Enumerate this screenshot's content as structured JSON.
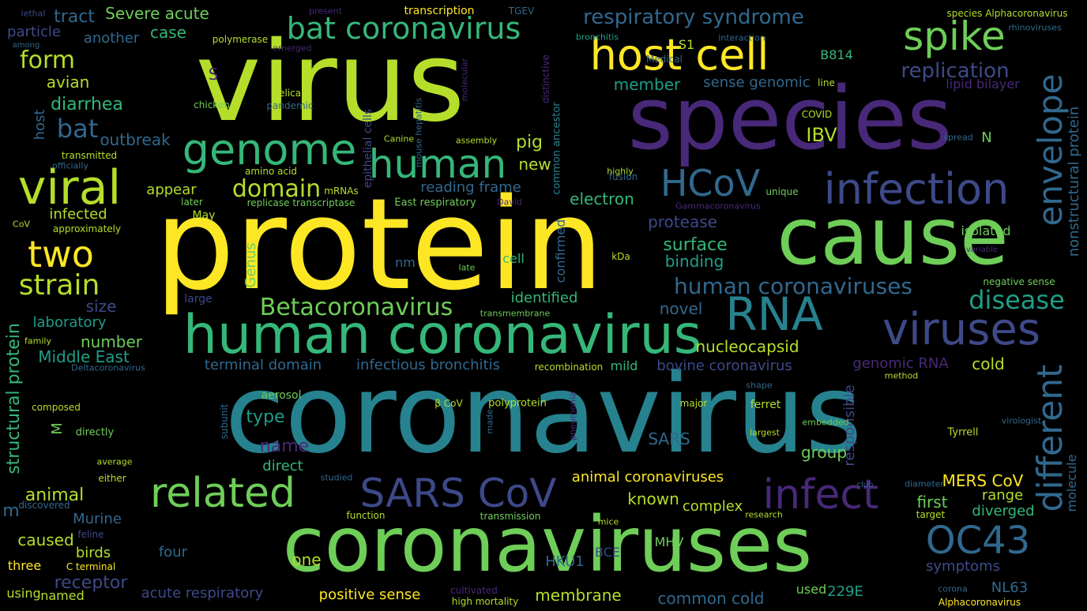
{
  "title": "",
  "palette": {
    "yellow": "#fde725",
    "lime": "#b5de2b",
    "green": "#6ece58",
    "seagreen": "#35b779",
    "teal": "#1f9e89",
    "tealblue": "#26828e",
    "blue": "#31688e",
    "indigo": "#3e4989",
    "purple": "#482878",
    "deep": "#440154"
  },
  "words": [
    {
      "text": "coronavirus",
      "color": "#26828e"
    },
    {
      "text": "virus",
      "color": "#b5de2b"
    },
    {
      "text": "protein",
      "color": "#fde725"
    },
    {
      "text": "species",
      "color": "#482878"
    },
    {
      "text": "coronaviruses",
      "color": "#6ece58"
    },
    {
      "text": "cause",
      "color": "#6ece58"
    },
    {
      "text": "human coronavirus",
      "color": "#35b779"
    },
    {
      "text": "host cell",
      "color": "#fde725"
    },
    {
      "text": "genome",
      "color": "#35b779"
    },
    {
      "text": "human",
      "color": "#35b779"
    },
    {
      "text": "viral",
      "color": "#b5de2b"
    },
    {
      "text": "spike",
      "color": "#6ece58"
    },
    {
      "text": "envelope",
      "color": "#31688e"
    },
    {
      "text": "infection",
      "color": "#3e4989"
    },
    {
      "text": "different",
      "color": "#31688e"
    },
    {
      "text": "RNA",
      "color": "#26828e"
    },
    {
      "text": "viruses",
      "color": "#3e4989"
    },
    {
      "text": "bat coronavirus",
      "color": "#35b779"
    },
    {
      "text": "related",
      "color": "#6ece58"
    },
    {
      "text": "SARS CoV",
      "color": "#3e4989"
    },
    {
      "text": "infect",
      "color": "#482878"
    },
    {
      "text": "OC43",
      "color": "#31688e"
    },
    {
      "text": "two",
      "color": "#fde725"
    },
    {
      "text": "strain",
      "color": "#b5de2b"
    },
    {
      "text": "HCoV",
      "color": "#31688e"
    },
    {
      "text": "Betacoronavirus",
      "color": "#6ece58"
    },
    {
      "text": "respiratory syndrome",
      "color": "#31688e"
    },
    {
      "text": "domain",
      "color": "#b5de2b"
    },
    {
      "text": "form",
      "color": "#b5de2b"
    },
    {
      "text": "bat",
      "color": "#31688e"
    },
    {
      "text": "human coronaviruses",
      "color": "#31688e"
    },
    {
      "text": "disease",
      "color": "#1f9e89"
    },
    {
      "text": "replication",
      "color": "#3e4989"
    },
    {
      "text": "nonstructural protein",
      "color": "#31688e"
    },
    {
      "text": "structural protein",
      "color": "#35b779"
    },
    {
      "text": "Severe acute",
      "color": "#6ece58"
    },
    {
      "text": "tract",
      "color": "#31688e"
    },
    {
      "text": "particle",
      "color": "#3e4989"
    },
    {
      "text": "another",
      "color": "#31688e"
    },
    {
      "text": "case",
      "color": "#35b779"
    },
    {
      "text": "avian",
      "color": "#b5de2b"
    },
    {
      "text": "diarrhea",
      "color": "#35b779"
    },
    {
      "text": "host",
      "color": "#31688e"
    },
    {
      "text": "outbreak",
      "color": "#31688e"
    },
    {
      "text": "member",
      "color": "#1f9e89"
    },
    {
      "text": "sense genomic",
      "color": "#31688e"
    },
    {
      "text": "lipid bilayer",
      "color": "#482878"
    },
    {
      "text": "IBV",
      "color": "#b5de2b"
    },
    {
      "text": "N",
      "color": "#6ece58"
    },
    {
      "text": "pig",
      "color": "#b5de2b"
    },
    {
      "text": "new",
      "color": "#b5de2b"
    },
    {
      "text": "electron",
      "color": "#35b779"
    },
    {
      "text": "reading frame",
      "color": "#31688e"
    },
    {
      "text": "appear",
      "color": "#b5de2b"
    },
    {
      "text": "infected",
      "color": "#b5de2b"
    },
    {
      "text": "protease",
      "color": "#3e4989"
    },
    {
      "text": "surface",
      "color": "#35b779"
    },
    {
      "text": "binding",
      "color": "#1f9e89"
    },
    {
      "text": "isolated",
      "color": "#6ece58"
    },
    {
      "text": "size",
      "color": "#3e4989"
    },
    {
      "text": "identified",
      "color": "#35b779"
    },
    {
      "text": "novel",
      "color": "#31688e"
    },
    {
      "text": "laboratory",
      "color": "#1f9e89"
    },
    {
      "text": "number",
      "color": "#6ece58"
    },
    {
      "text": "Middle East",
      "color": "#1f9e89"
    },
    {
      "text": "terminal domain",
      "color": "#31688e"
    },
    {
      "text": "infectious bronchitis",
      "color": "#31688e"
    },
    {
      "text": "nucleocapsid",
      "color": "#b5de2b"
    },
    {
      "text": "bovine coronavirus",
      "color": "#3e4989"
    },
    {
      "text": "mild",
      "color": "#35b779"
    },
    {
      "text": "genomic RNA",
      "color": "#482878"
    },
    {
      "text": "cold",
      "color": "#b5de2b"
    },
    {
      "text": "type",
      "color": "#1f9e89"
    },
    {
      "text": "name",
      "color": "#482878"
    },
    {
      "text": "direct",
      "color": "#35b779"
    },
    {
      "text": "SARS",
      "color": "#31688e"
    },
    {
      "text": "group",
      "color": "#6ece58"
    },
    {
      "text": "responsible",
      "color": "#3e4989"
    },
    {
      "text": "MERS CoV",
      "color": "#fde725"
    },
    {
      "text": "first",
      "color": "#6ece58"
    },
    {
      "text": "range",
      "color": "#b5de2b"
    },
    {
      "text": "diverged",
      "color": "#35b779"
    },
    {
      "text": "molecule",
      "color": "#31688e"
    },
    {
      "text": "animal",
      "color": "#b5de2b"
    },
    {
      "text": "known",
      "color": "#b5de2b"
    },
    {
      "text": "complex",
      "color": "#b5de2b"
    },
    {
      "text": "animal coronaviruses",
      "color": "#fde725"
    },
    {
      "text": "Murine",
      "color": "#31688e"
    },
    {
      "text": "caused",
      "color": "#b5de2b"
    },
    {
      "text": "birds",
      "color": "#b5de2b"
    },
    {
      "text": "four",
      "color": "#31688e"
    },
    {
      "text": "one",
      "color": "#b5de2b"
    },
    {
      "text": "HKU1",
      "color": "#31688e"
    },
    {
      "text": "BCE",
      "color": "#3e4989"
    },
    {
      "text": "MHV",
      "color": "#6ece58"
    },
    {
      "text": "symptoms",
      "color": "#3e4989"
    },
    {
      "text": "three",
      "color": "#fde725"
    },
    {
      "text": "receptor",
      "color": "#3e4989"
    },
    {
      "text": "acute respiratory",
      "color": "#3e4989"
    },
    {
      "text": "positive sense",
      "color": "#fde725"
    },
    {
      "text": "membrane",
      "color": "#b5de2b"
    },
    {
      "text": "common cold",
      "color": "#31688e"
    },
    {
      "text": "used",
      "color": "#6ece58"
    },
    {
      "text": "229E",
      "color": "#1f9e89"
    },
    {
      "text": "NL63",
      "color": "#31688e"
    },
    {
      "text": "using",
      "color": "#b5de2b"
    },
    {
      "text": "named",
      "color": "#b5de2b"
    },
    {
      "text": "high mortality",
      "color": "#b5de2b"
    },
    {
      "text": "cultivated",
      "color": "#482878"
    },
    {
      "text": "Alphacoronavirus",
      "color": "#fde725"
    },
    {
      "text": "corona",
      "color": "#31688e"
    },
    {
      "text": "Genus",
      "color": "#6ece58"
    },
    {
      "text": "nm",
      "color": "#31688e"
    },
    {
      "text": "cell",
      "color": "#35b779"
    },
    {
      "text": "confirmed",
      "color": "#31688e"
    },
    {
      "text": "epithelial cells",
      "color": "#3e4989"
    },
    {
      "text": "mouse hepatitis",
      "color": "#31688e"
    },
    {
      "text": "common ancestor",
      "color": "#26828e"
    },
    {
      "text": "distinctive",
      "color": "#482878"
    },
    {
      "text": "transcription",
      "color": "#fde725"
    },
    {
      "text": "TGEV",
      "color": "#31688e"
    },
    {
      "text": "species Alphacoronavirus",
      "color": "#b5de2b"
    },
    {
      "text": "rhinoviruses",
      "color": "#31688e"
    },
    {
      "text": "interaction",
      "color": "#31688e"
    },
    {
      "text": "bronchitis",
      "color": "#1f9e89"
    },
    {
      "text": "Medical",
      "color": "#31688e"
    },
    {
      "text": "S1",
      "color": "#b5de2b"
    },
    {
      "text": "B814",
      "color": "#35b779"
    },
    {
      "text": "S",
      "color": "#482878"
    },
    {
      "text": "polymerase",
      "color": "#b5de2b"
    },
    {
      "text": "emerged",
      "color": "#482878"
    },
    {
      "text": "helical",
      "color": "#b5de2b"
    },
    {
      "text": "pandemic",
      "color": "#31688e"
    },
    {
      "text": "chicken",
      "color": "#6ece58"
    },
    {
      "text": "lethal",
      "color": "#3e4989"
    },
    {
      "text": "present",
      "color": "#482878"
    },
    {
      "text": "among",
      "color": "#31688e"
    },
    {
      "text": "molecular",
      "color": "#482878"
    },
    {
      "text": "line",
      "color": "#b5de2b"
    },
    {
      "text": "COVID",
      "color": "#b5de2b"
    },
    {
      "text": "Canine",
      "color": "#b5de2b"
    },
    {
      "text": "assembly",
      "color": "#b5de2b"
    },
    {
      "text": "spread",
      "color": "#31688e"
    },
    {
      "text": "transmitted",
      "color": "#b5de2b"
    },
    {
      "text": "officially",
      "color": "#31688e"
    },
    {
      "text": "amino acid",
      "color": "#b5de2b"
    },
    {
      "text": "mRNAs",
      "color": "#b5de2b"
    },
    {
      "text": "later",
      "color": "#6ece58"
    },
    {
      "text": "replicase transcriptase",
      "color": "#6ece58"
    },
    {
      "text": "East respiratory",
      "color": "#6ece58"
    },
    {
      "text": "David",
      "color": "#482878"
    },
    {
      "text": "fusion",
      "color": "#31688e"
    },
    {
      "text": "highly",
      "color": "#b5de2b"
    },
    {
      "text": "unique",
      "color": "#6ece58"
    },
    {
      "text": "Gammacoronavirus",
      "color": "#482878"
    },
    {
      "text": "May",
      "color": "#b5de2b"
    },
    {
      "text": "CoV",
      "color": "#b5de2b"
    },
    {
      "text": "approximately",
      "color": "#b5de2b"
    },
    {
      "text": "kDa",
      "color": "#b5de2b"
    },
    {
      "text": "late",
      "color": "#6ece58"
    },
    {
      "text": "variable",
      "color": "#482878"
    },
    {
      "text": "negative sense",
      "color": "#6ece58"
    },
    {
      "text": "large",
      "color": "#3e4989"
    },
    {
      "text": "transmembrane",
      "color": "#6ece58"
    },
    {
      "text": "family",
      "color": "#b5de2b"
    },
    {
      "text": "Deltacoronavirus",
      "color": "#31688e"
    },
    {
      "text": "recombination",
      "color": "#b5de2b"
    },
    {
      "text": "shape",
      "color": "#31688e"
    },
    {
      "text": "method",
      "color": "#b5de2b"
    },
    {
      "text": "aerosol",
      "color": "#6ece58"
    },
    {
      "text": "composed",
      "color": "#b5de2b"
    },
    {
      "text": "subunit",
      "color": "#31688e"
    },
    {
      "text": "β CoV",
      "color": "#b5de2b"
    },
    {
      "text": "polyprotein",
      "color": "#b5de2b"
    },
    {
      "text": "made",
      "color": "#31688e"
    },
    {
      "text": "pneumonia",
      "color": "#482878"
    },
    {
      "text": "major",
      "color": "#b5de2b"
    },
    {
      "text": "ferret",
      "color": "#b5de2b"
    },
    {
      "text": "embedded",
      "color": "#6ece58"
    },
    {
      "text": "largest",
      "color": "#b5de2b"
    },
    {
      "text": "Tyrrell",
      "color": "#b5de2b"
    },
    {
      "text": "virologist",
      "color": "#31688e"
    },
    {
      "text": "directly",
      "color": "#6ece58"
    },
    {
      "text": "M",
      "color": "#6ece58"
    },
    {
      "text": "average",
      "color": "#b5de2b"
    },
    {
      "text": "either",
      "color": "#b5de2b"
    },
    {
      "text": "discovered",
      "color": "#31688e"
    },
    {
      "text": "studied",
      "color": "#31688e"
    },
    {
      "text": "club",
      "color": "#31688e"
    },
    {
      "text": "diameter",
      "color": "#31688e"
    },
    {
      "text": "target",
      "color": "#b5de2b"
    },
    {
      "text": "function",
      "color": "#b5de2b"
    },
    {
      "text": "transmission",
      "color": "#6ece58"
    },
    {
      "text": "mice",
      "color": "#b5de2b"
    },
    {
      "text": "research",
      "color": "#b5de2b"
    },
    {
      "text": "feline",
      "color": "#3e4989"
    },
    {
      "text": "C terminal",
      "color": "#fde725"
    },
    {
      "text": "m",
      "color": "#31688e"
    }
  ]
}
